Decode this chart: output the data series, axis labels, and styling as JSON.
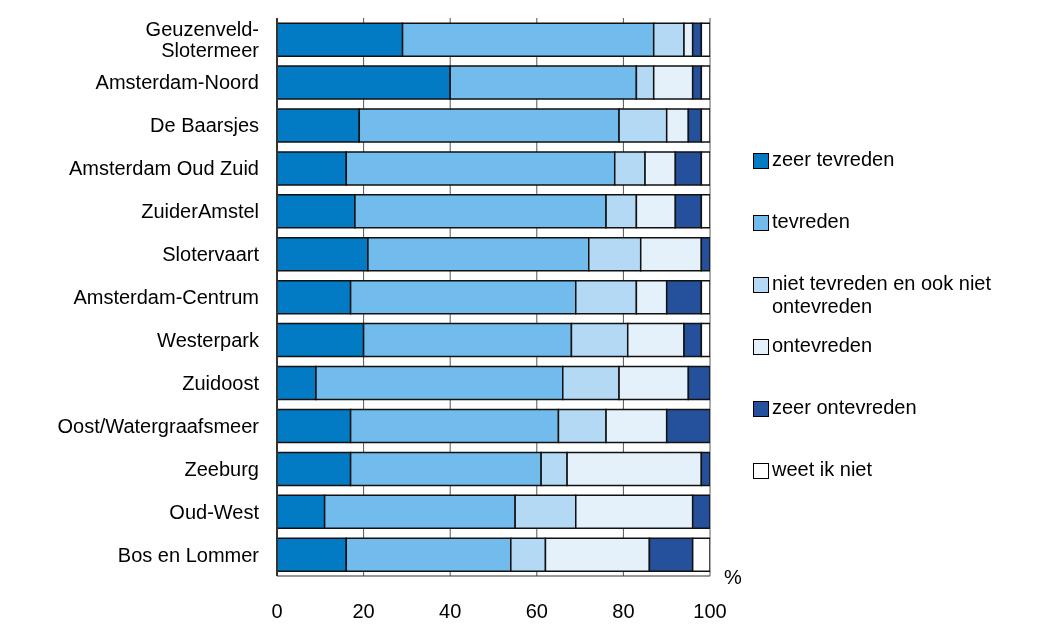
{
  "chart_data": {
    "type": "bar",
    "orientation": "horizontal",
    "stacked": true,
    "categories": [
      "Geuzenveld-\nSlotermeer",
      "Amsterdam-Noord",
      "De Baarsjes",
      "Amsterdam Oud Zuid",
      "ZuiderAmstel",
      "Slotervaart",
      "Amsterdam-Centrum",
      "Westerpark",
      "Zuidoost",
      "Oost/Watergraafsmeer",
      "Zeeburg",
      "Oud-West",
      "Bos en Lommer"
    ],
    "series": [
      {
        "name": "zeer tevreden",
        "color": "#037bc4",
        "values": [
          29,
          40,
          19,
          16,
          18,
          21,
          17,
          20,
          9,
          17,
          17,
          11,
          16
        ]
      },
      {
        "name": "tevreden",
        "color": "#71bcec",
        "values": [
          58,
          43,
          60,
          62,
          58,
          51,
          52,
          48,
          57,
          48,
          44,
          44,
          38
        ]
      },
      {
        "name": "niet tevreden en ook niet ontevreden",
        "color": "#b3d9f4",
        "values": [
          7,
          4,
          11,
          7,
          7,
          12,
          14,
          13,
          13,
          11,
          6,
          14,
          8
        ]
      },
      {
        "name": "ontevreden",
        "color": "#e4f0fa",
        "values": [
          2,
          9,
          5,
          7,
          9,
          14,
          7,
          13,
          16,
          14,
          31,
          27,
          24
        ]
      },
      {
        "name": "zeer ontevreden",
        "color": "#25509b",
        "values": [
          2,
          2,
          3,
          6,
          6,
          2,
          8,
          4,
          5,
          10,
          2,
          4,
          10
        ]
      },
      {
        "name": "weet ik niet",
        "color": "#ffffff",
        "values": [
          2,
          2,
          2,
          2,
          2,
          0,
          2,
          2,
          0,
          0,
          0,
          0,
          4
        ]
      }
    ],
    "xlim": [
      0,
      100
    ],
    "xticks": [
      0,
      20,
      40,
      60,
      80,
      100
    ],
    "grid": "x",
    "legend": "right",
    "annotations": [
      "%"
    ]
  }
}
